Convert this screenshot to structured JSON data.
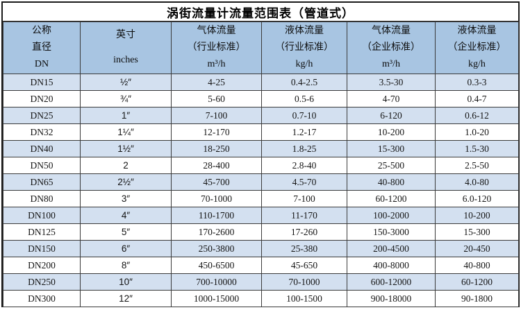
{
  "title": "涡街流量计流量范围表（管道式）",
  "colors": {
    "header_fill": "#a8c5e2",
    "alt_row_fill": "#d3e0f0",
    "plain_row_fill": "#ffffff",
    "border": "#3a3a3a",
    "outer_border": "#1a1a1a",
    "text": "#141414"
  },
  "chart_data": {
    "type": "table",
    "title": "涡街流量计流量范围表（管道式）",
    "columns": [
      {
        "name": "nominal-diameter",
        "lines": [
          "公称",
          "直径",
          "DN"
        ]
      },
      {
        "name": "inches",
        "lines": [
          "英寸",
          "inches"
        ]
      },
      {
        "name": "gas-flow-industry-standard",
        "lines": [
          "气体流量",
          "（行业标准）",
          "m³/h"
        ]
      },
      {
        "name": "liquid-flow-industry-standard",
        "lines": [
          "液体流量",
          "（行业标准）",
          "kg/h"
        ]
      },
      {
        "name": "gas-flow-enterprise-standard",
        "lines": [
          "气体流量",
          "（企业标准）",
          "m³/h"
        ]
      },
      {
        "name": "liquid-flow-enterprise-standard",
        "lines": [
          "液体流量",
          "（企业标准）",
          "kg/h"
        ]
      }
    ],
    "rows": [
      [
        "DN15",
        "½″",
        "4-25",
        "0.4-2.5",
        "3.5-30",
        "0.3-3"
      ],
      [
        "DN20",
        "¾″",
        "5-60",
        "0.5-6",
        "4-70",
        "0.4-7"
      ],
      [
        "DN25",
        "1″",
        "7-100",
        "0.7-10",
        "6-120",
        "0.6-12"
      ],
      [
        "DN32",
        "1¼″",
        "12-170",
        "1.2-17",
        "10-200",
        "1.0-20"
      ],
      [
        "DN40",
        "1½″",
        "18-250",
        "1.8-25",
        "15-300",
        "1.5-30"
      ],
      [
        "DN50",
        "2",
        "28-400",
        "2.8-40",
        "25-500",
        "2.5-50"
      ],
      [
        "DN65",
        "2½″",
        "45-700",
        "4.5-70",
        "40-800",
        "4.0-80"
      ],
      [
        "DN80",
        "3″",
        "70-1000",
        "7-100",
        "60-1200",
        "6.0-120"
      ],
      [
        "DN100",
        "4″",
        "110-1700",
        "11-170",
        "100-2000",
        "10-200"
      ],
      [
        "DN125",
        "5″",
        "170-2600",
        "17-260",
        "150-3000",
        "15-300"
      ],
      [
        "DN150",
        "6″",
        "250-3800",
        "25-380",
        "200-4500",
        "20-450"
      ],
      [
        "DN200",
        "8″",
        "450-6500",
        "45-650",
        "400-8000",
        "40-800"
      ],
      [
        "DN250",
        "10″",
        "700-10000",
        "70-1000",
        "600-12000",
        "60-1200"
      ],
      [
        "DN300",
        "12″",
        "1000-15000",
        "100-1500",
        "900-18000",
        "90-1800"
      ]
    ]
  }
}
